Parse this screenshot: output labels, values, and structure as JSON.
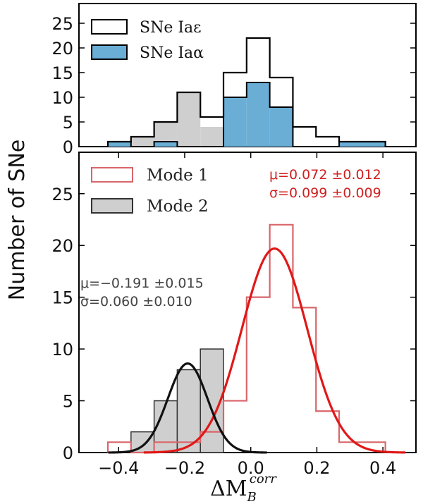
{
  "figure": {
    "shared_ylabel": "Number of SNe",
    "xlabel_main": "ΔM",
    "xlabel_sub": "B",
    "xlabel_sup": "corr"
  },
  "chart_data": [
    {
      "type": "histogram",
      "panel": "top",
      "xlim": [
        -0.52,
        0.5
      ],
      "ylim": [
        0,
        29
      ],
      "yticks": [
        0,
        5,
        10,
        15,
        20,
        25
      ],
      "ytick_labels": [
        "0",
        "5",
        "10",
        "15",
        "20",
        "25"
      ],
      "bin_edges": [
        -0.4325,
        -0.3625,
        -0.2925,
        -0.2225,
        -0.1525,
        -0.0825,
        -0.0125,
        0.0575,
        0.1275,
        0.1975,
        0.2675,
        0.3375,
        0.4075
      ],
      "series": [
        {
          "name": "SNe Iaε",
          "style": "step-outline",
          "color": "#000000",
          "counts": [
            1,
            2,
            5,
            11,
            6,
            15,
            22,
            14,
            4,
            2,
            1,
            1
          ]
        },
        {
          "name": "SNe Iaα",
          "style": "filled",
          "color": "#6aaed6",
          "counts": [
            1,
            0,
            1,
            0,
            0,
            10,
            13,
            8,
            0,
            0,
            1,
            1
          ]
        },
        {
          "name": "Mode 2 (shown grey)",
          "style": "filled",
          "color": "#cfcfcf",
          "counts": [
            0,
            2,
            5,
            11,
            4,
            0,
            0,
            0,
            0,
            0,
            0,
            0
          ]
        }
      ],
      "legend": {
        "placement": "top-left",
        "entries": [
          "SNe Iaε",
          "SNe Iaα"
        ]
      }
    },
    {
      "type": "histogram",
      "panel": "bottom",
      "xlim": [
        -0.52,
        0.5
      ],
      "ylim": [
        0,
        29
      ],
      "xticks": [
        -0.4,
        -0.2,
        0.0,
        0.2,
        0.4
      ],
      "xtick_labels": [
        "−0.4",
        "−0.2",
        "0.0",
        "0.2",
        "0.4"
      ],
      "yticks": [
        0,
        5,
        10,
        15,
        20,
        25
      ],
      "ytick_labels": [
        "0",
        "5",
        "10",
        "15",
        "20",
        "25"
      ],
      "bin_edges": [
        -0.4325,
        -0.3625,
        -0.2925,
        -0.2225,
        -0.1525,
        -0.0825,
        -0.0125,
        0.0575,
        0.1275,
        0.1975,
        0.2675,
        0.3375,
        0.4075
      ],
      "series": [
        {
          "name": "Mode 1",
          "style": "step-outline",
          "color": "#d9656a",
          "counts": [
            1,
            0,
            1,
            1,
            2,
            5,
            15,
            22,
            14,
            4,
            1,
            1
          ]
        },
        {
          "name": "Mode 2",
          "style": "filled",
          "color": "#cfcfcf",
          "edge": "#333333",
          "counts": [
            0,
            2,
            5,
            8,
            10,
            0,
            0,
            0,
            0,
            0,
            0,
            0
          ]
        }
      ],
      "fits": [
        {
          "name": "Mode 1 gaussian",
          "color": "#e01818",
          "mu": 0.072,
          "sigma": 0.099,
          "peak": 19.7
        },
        {
          "name": "Mode 2 gaussian",
          "color": "#111111",
          "mu": -0.191,
          "sigma": 0.06,
          "peak": 8.6
        }
      ],
      "legend": {
        "placement": "top-left",
        "entries": [
          "Mode 1",
          "Mode 2"
        ]
      },
      "annotations": {
        "mode1_mu": "μ=0.072 ±0.012",
        "mode1_sigma": "σ=0.099 ±0.009",
        "mode2_mu": "μ=−0.191 ±0.015",
        "mode2_sigma": "σ=0.060 ±0.010"
      }
    }
  ]
}
